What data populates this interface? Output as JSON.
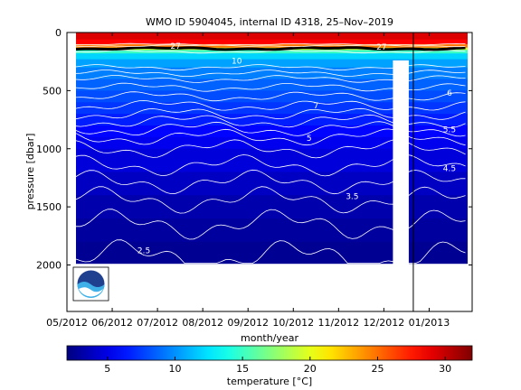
{
  "chart_data": {
    "type": "heatmap",
    "title": "WMO ID 5904045, internal ID 4318, 25–Nov–2019",
    "xlabel": "month/year",
    "ylabel": "pressure [dbar]",
    "x_tick_labels": [
      "05/2012",
      "06/2012",
      "07/2012",
      "08/2012",
      "09/2012",
      "10/2012",
      "11/2012",
      "12/2012",
      "01/2013"
    ],
    "y_ticks": [
      0,
      500,
      1000,
      1500,
      2000
    ],
    "ylim": [
      2400,
      0
    ],
    "y_inverted": true,
    "x_months_range": [
      0,
      8.95
    ],
    "data_x_range_months": [
      0.2,
      8.85
    ],
    "gap_x_months": [
      7.2,
      7.55
    ],
    "divider_x_month": 7.65,
    "profile_max_depth_dbar": 1990,
    "colorbar": {
      "label": "temperature [°C]",
      "unit_sup": "o",
      "ticks": [
        5,
        10,
        15,
        20,
        25,
        30
      ],
      "range": [
        2,
        32
      ],
      "colormap": "jet"
    },
    "temperature_profile": [
      {
        "pressure": 0,
        "temperature": 29.5
      },
      {
        "pressure": 60,
        "temperature": 29.0
      },
      {
        "pressure": 100,
        "temperature": 27.5
      },
      {
        "pressure": 130,
        "temperature": 22
      },
      {
        "pressure": 150,
        "temperature": 17
      },
      {
        "pressure": 180,
        "temperature": 13
      },
      {
        "pressure": 230,
        "temperature": 11
      },
      {
        "pressure": 300,
        "temperature": 10
      },
      {
        "pressure": 400,
        "temperature": 9
      },
      {
        "pressure": 500,
        "temperature": 8.3
      },
      {
        "pressure": 600,
        "temperature": 7.7
      },
      {
        "pressure": 700,
        "temperature": 7.0
      },
      {
        "pressure": 800,
        "temperature": 6.2
      },
      {
        "pressure": 900,
        "temperature": 5.5
      },
      {
        "pressure": 1000,
        "temperature": 5.0
      },
      {
        "pressure": 1200,
        "temperature": 4.3
      },
      {
        "pressure": 1400,
        "temperature": 3.6
      },
      {
        "pressure": 1600,
        "temperature": 3.1
      },
      {
        "pressure": 1800,
        "temperature": 2.7
      },
      {
        "pressure": 2000,
        "temperature": 2.4
      }
    ],
    "contour_levels": [
      2.5,
      3,
      3.5,
      4,
      4.5,
      5,
      5.5,
      6,
      6.5,
      7,
      7.5,
      8,
      8.5,
      9,
      9.5,
      10,
      15,
      20,
      25,
      27
    ],
    "contour_labels": [
      {
        "text": "27",
        "month": 2.4,
        "pressure": 115
      },
      {
        "text": "27",
        "month": 6.95,
        "pressure": 125
      },
      {
        "text": "10",
        "month": 3.75,
        "pressure": 245
      },
      {
        "text": "6",
        "month": 8.45,
        "pressure": 520
      },
      {
        "text": "7",
        "month": 5.5,
        "pressure": 630
      },
      {
        "text": "5.5",
        "month": 8.45,
        "pressure": 835
      },
      {
        "text": "5",
        "month": 5.35,
        "pressure": 910
      },
      {
        "text": "4.5",
        "month": 8.45,
        "pressure": 1170
      },
      {
        "text": "3.5",
        "month": 6.3,
        "pressure": 1410
      },
      {
        "text": "2.5",
        "month": 1.7,
        "pressure": 1875
      }
    ]
  }
}
